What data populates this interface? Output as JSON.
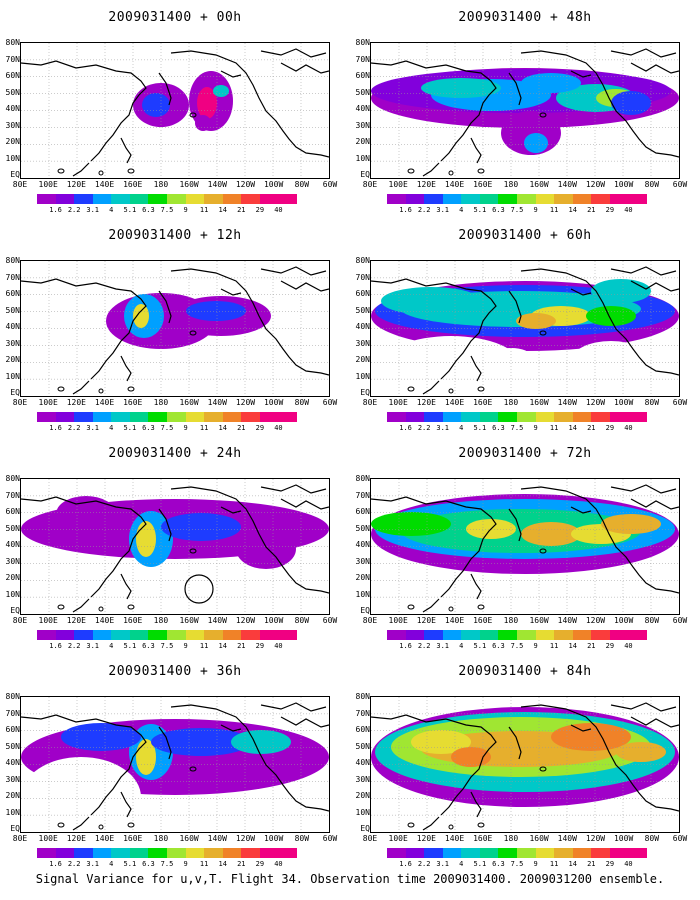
{
  "caption": "Signal Variance for u,v,T. Flight 34. Observation time 2009031400. 2009031200 ensemble.",
  "lat_labels": [
    "80N",
    "70N",
    "60N",
    "50N",
    "40N",
    "30N",
    "20N",
    "10N",
    "EQ"
  ],
  "lon_labels": [
    "80E",
    "100E",
    "120E",
    "140E",
    "160E",
    "180",
    "160W",
    "140W",
    "120W",
    "100W",
    "80W",
    "60W"
  ],
  "colorbar": {
    "levels": [
      "1.6",
      "2.2",
      "3.1",
      "4",
      "5.1",
      "6.3",
      "7.5",
      "9",
      "11",
      "14",
      "21",
      "29",
      "40"
    ],
    "colors": [
      "#a000c8",
      "#8200dc",
      "#1e3cff",
      "#00a0ff",
      "#00c8c8",
      "#00d28c",
      "#00dc00",
      "#a0e632",
      "#e6dc32",
      "#e6af2d",
      "#f08228",
      "#fa3c3c",
      "#f00082"
    ]
  },
  "panels": [
    {
      "title": "2009031400 + 00h"
    },
    {
      "title": "2009031400 + 48h"
    },
    {
      "title": "2009031400 + 12h"
    },
    {
      "title": "2009031400 + 60h"
    },
    {
      "title": "2009031400 + 24h"
    },
    {
      "title": "2009031400 + 72h"
    },
    {
      "title": "2009031400 + 36h"
    },
    {
      "title": "2009031400 + 84h"
    }
  ]
}
